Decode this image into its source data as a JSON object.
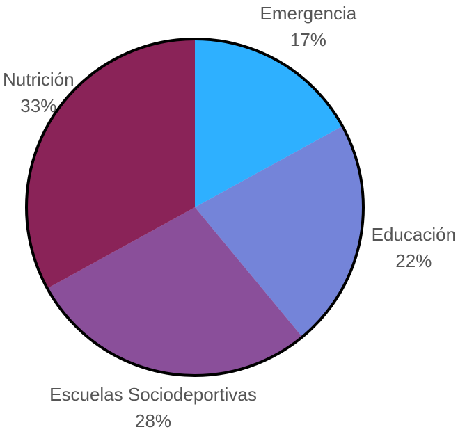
{
  "chart_data": {
    "type": "pie",
    "categories": [
      "Emergencia",
      "Educación",
      "Escuelas Sociodeportivas",
      "Nutrición"
    ],
    "values": [
      17,
      22,
      28,
      33
    ],
    "value_labels": [
      "17%",
      "22%",
      "28%",
      "33%"
    ],
    "colors": [
      "#2eb0ff",
      "#7484d9",
      "#8a4f9a",
      "#8a2358"
    ]
  }
}
